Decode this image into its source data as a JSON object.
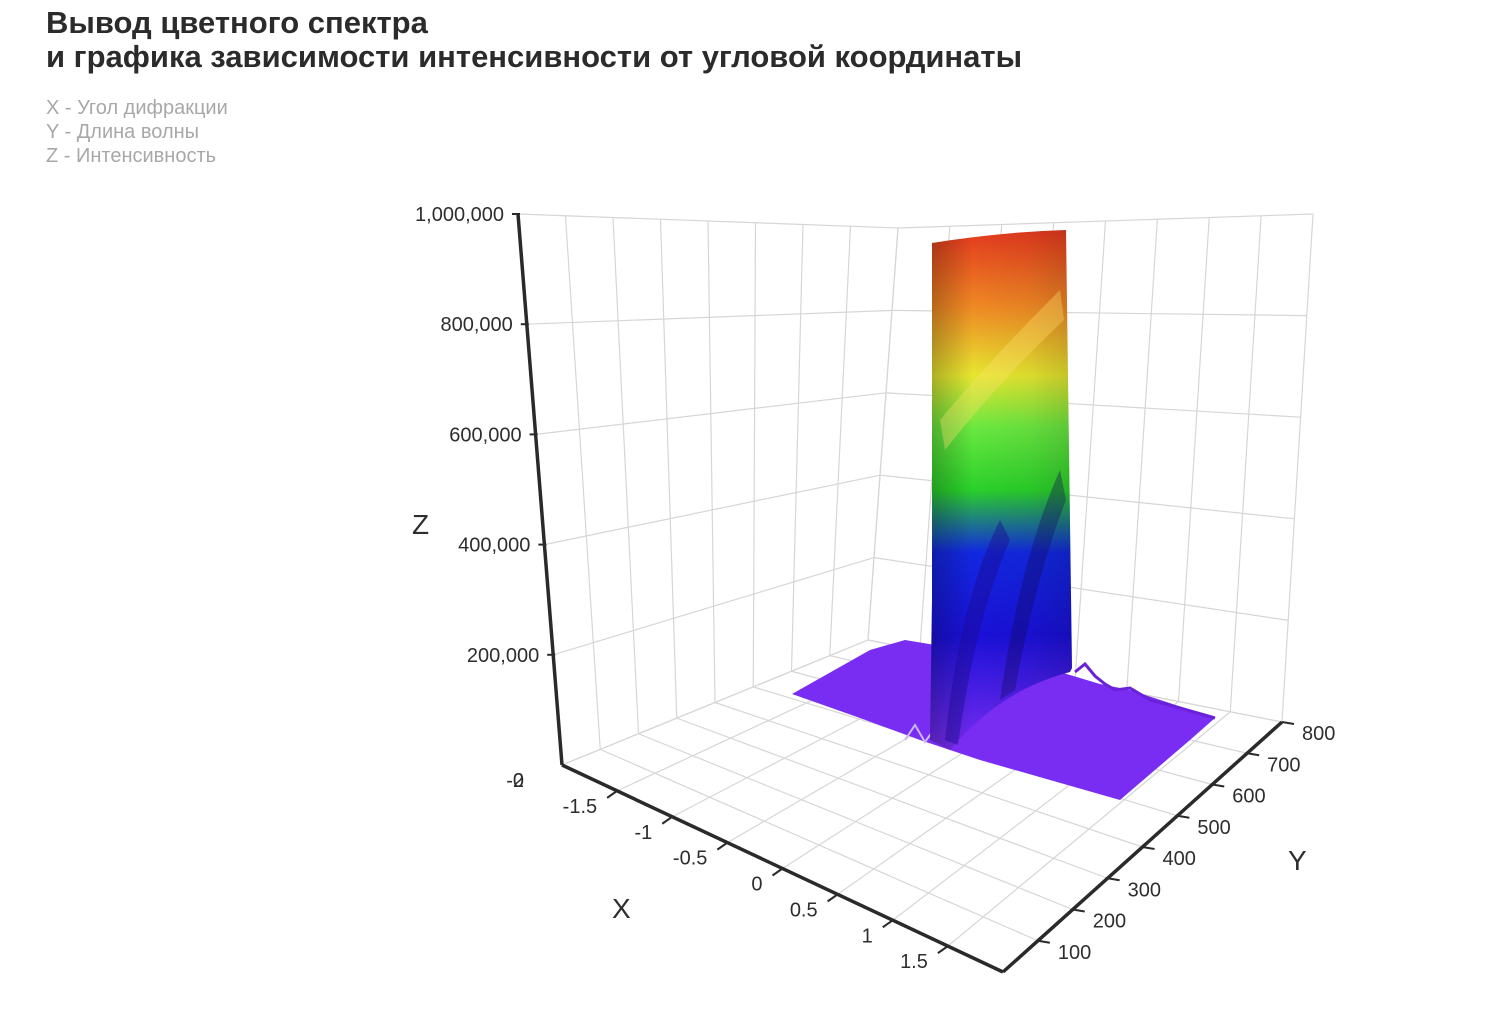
{
  "header": {
    "title_line1": "Вывод цветного спектра",
    "title_line2": "и графика зависимости интенсивности от угловой координаты"
  },
  "legend": {
    "x_desc": "X - Угол дифракции",
    "y_desc": "Y - Длина волны",
    "z_desc": "Z - Интенсивность"
  },
  "chart_data": {
    "type": "surface3d",
    "xlabel": "X",
    "ylabel": "Y",
    "zlabel": "Z",
    "x_ticks": [
      "-1.5",
      "-1",
      "-0.5",
      "0",
      "0.5",
      "1",
      "1.5"
    ],
    "y_ticks": [
      "100",
      "200",
      "300",
      "400",
      "500",
      "600",
      "700",
      "800"
    ],
    "z_ticks": [
      "200,000",
      "400,000",
      "600,000",
      "800,000",
      "1,000,000"
    ],
    "z_zero_labels": [
      "-0",
      "2"
    ],
    "xlim": [
      -2,
      2
    ],
    "ylim": [
      0,
      800
    ],
    "zlim": [
      0,
      1000000
    ],
    "surface": {
      "description_peak_x": 0,
      "peak_z": 1000000,
      "baseline_z": 50000,
      "peak_width_x": 0.3,
      "colorscale": [
        "#7a2df2",
        "#1010e0",
        "#20c040",
        "#e8e830",
        "#f08020",
        "#e03020"
      ]
    },
    "grid": true
  }
}
